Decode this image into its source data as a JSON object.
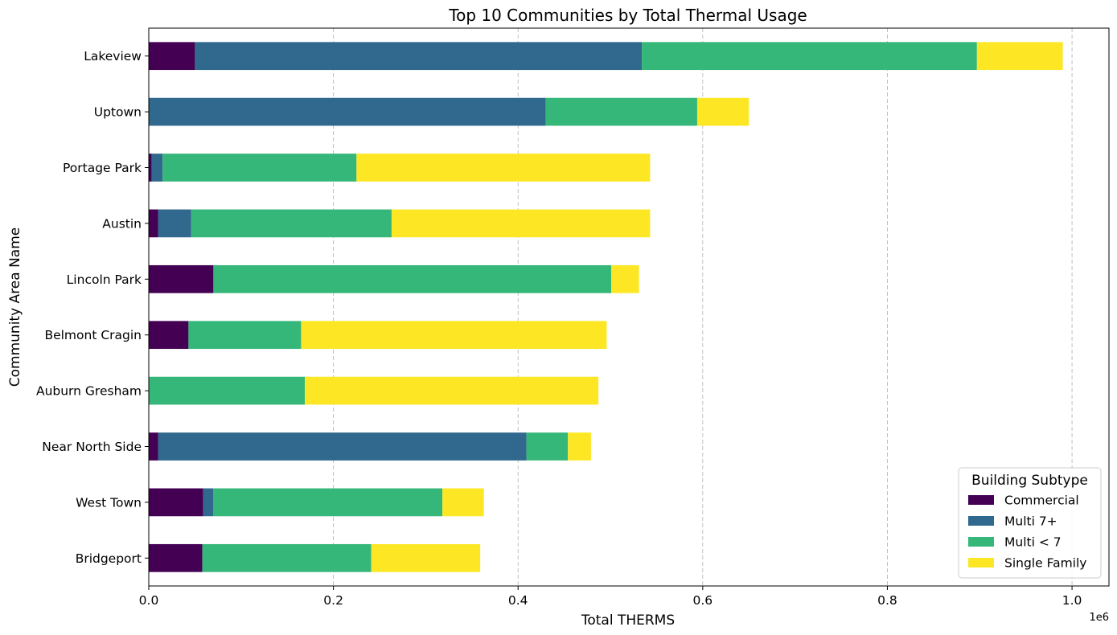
{
  "chart_data": {
    "type": "bar",
    "orientation": "horizontal",
    "stacked": true,
    "title": "Top 10 Communities by Total Thermal Usage",
    "xlabel": "Total THERMS",
    "ylabel": "Community Area Name",
    "x_offset_label": "1e6",
    "xlim": [
      0,
      1.04
    ],
    "xticks": [
      0.0,
      0.2,
      0.4,
      0.6,
      0.8,
      1.0
    ],
    "xtick_labels": [
      "0.0",
      "0.2",
      "0.4",
      "0.6",
      "0.8",
      "1.0"
    ],
    "grid": "x dashed",
    "categories": [
      "Lakeview",
      "Uptown",
      "Portage Park",
      "Austin",
      "Lincoln Park",
      "Belmont Cragin",
      "Auburn Gresham",
      "Near North Side",
      "West Town",
      "Bridgeport"
    ],
    "series": [
      {
        "name": "Commercial",
        "color": "#440154",
        "values": [
          0.05,
          0.0,
          0.003,
          0.01,
          0.07,
          0.043,
          0.0,
          0.01,
          0.059,
          0.058
        ]
      },
      {
        "name": "Multi 7+",
        "color": "#31688e",
        "values": [
          0.484,
          0.43,
          0.012,
          0.036,
          0.0,
          0.0,
          0.0,
          0.399,
          0.011,
          0.0
        ]
      },
      {
        "name": "Multi < 7",
        "color": "#35b779",
        "values": [
          0.363,
          0.164,
          0.21,
          0.217,
          0.431,
          0.122,
          0.169,
          0.045,
          0.248,
          0.183
        ]
      },
      {
        "name": "Single Family",
        "color": "#fde725",
        "values": [
          0.093,
          0.056,
          0.318,
          0.28,
          0.03,
          0.331,
          0.318,
          0.025,
          0.045,
          0.118
        ]
      }
    ],
    "legend": {
      "title": "Building Subtype",
      "placement": "lower-right"
    }
  }
}
